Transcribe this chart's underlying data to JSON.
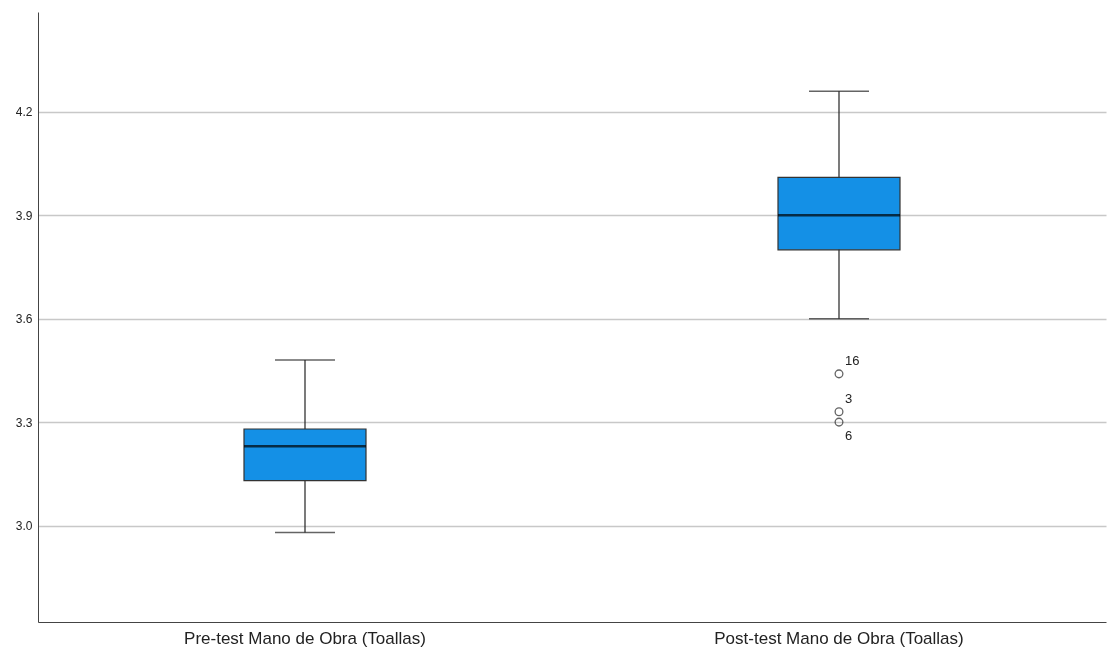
{
  "chart_data": {
    "type": "box",
    "categories": [
      "Pre-test Mano de Obra (Toallas)",
      "Post-test Mano de Obra (Toallas)"
    ],
    "color": "#1490e6",
    "boxes": [
      {
        "low": 2.98,
        "q1": 3.13,
        "median": 3.23,
        "q3": 3.28,
        "high": 3.48
      },
      {
        "low": 3.6,
        "q1": 3.8,
        "median": 3.9,
        "q3": 4.01,
        "high": 4.26,
        "outliers": [
          3.44,
          3.33,
          3.3
        ]
      }
    ],
    "ylim": [
      2.72,
      4.49
    ],
    "yticks": [
      {
        "value": 3.0,
        "label": "3.0"
      },
      {
        "value": 3.3,
        "label": "3.3"
      },
      {
        "value": 3.6,
        "label": "3.6"
      },
      {
        "value": 3.9,
        "label": "3.9"
      },
      {
        "value": 4.2,
        "label": "4.2"
      }
    ],
    "grid": "y",
    "annotations": [
      "16",
      "3",
      "6"
    ]
  }
}
